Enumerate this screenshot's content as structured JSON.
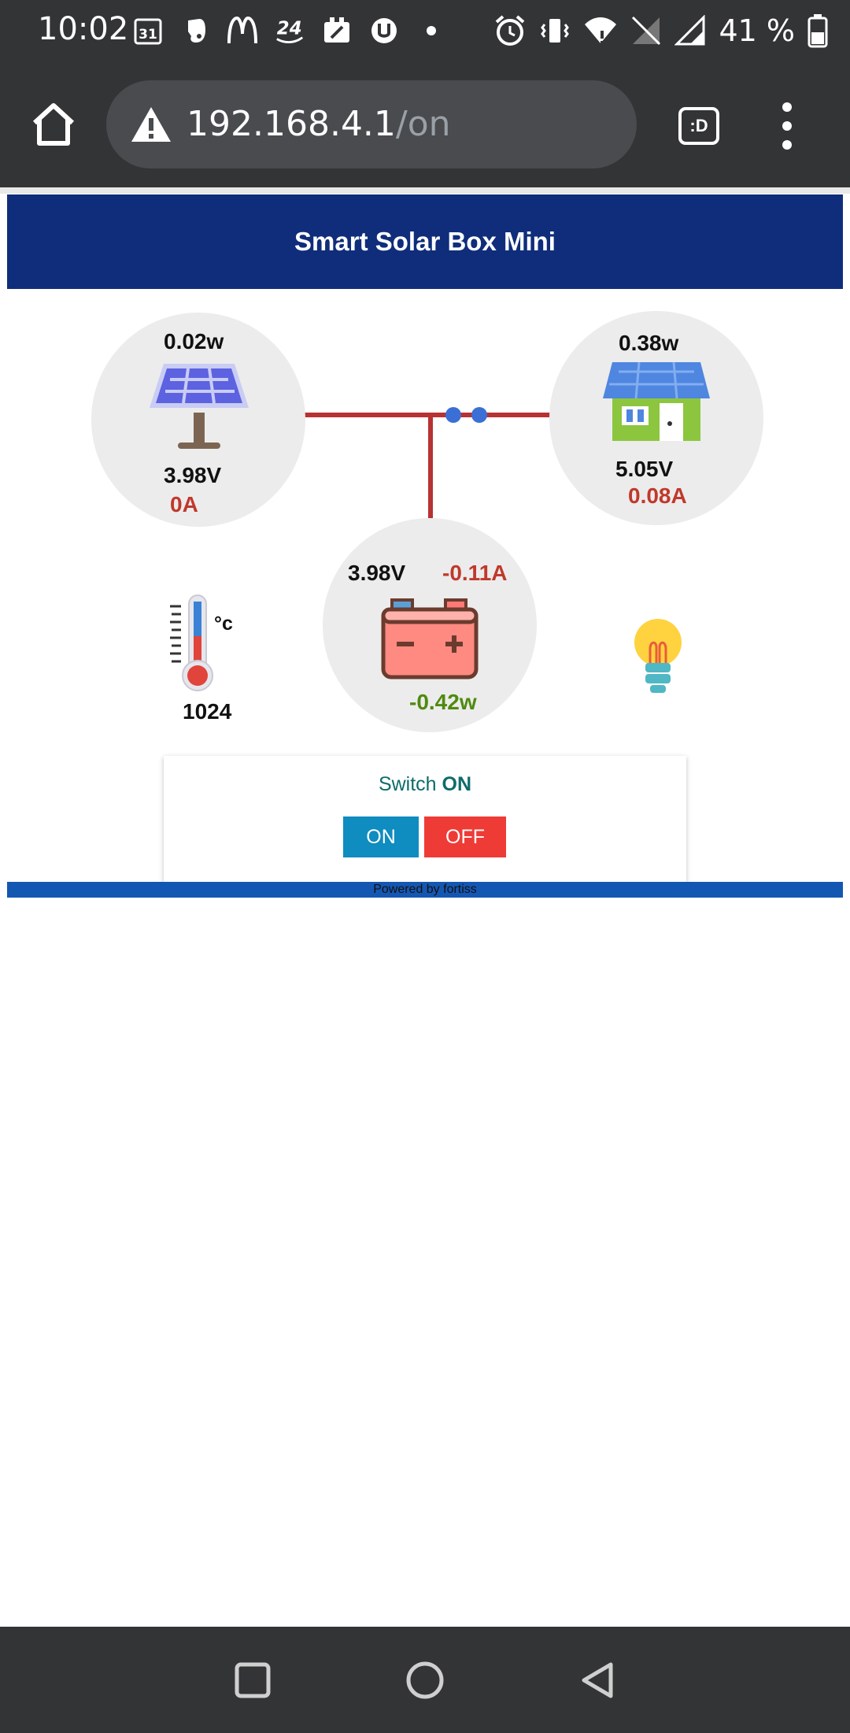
{
  "status_bar": {
    "time": "10:02",
    "calendar_day": "31",
    "battery_percent": "41 %",
    "icons": [
      "calendar-icon",
      "evernote-icon",
      "mcdonalds-icon",
      "app24-icon",
      "delivery-icon",
      "uber-eats-icon",
      "dot-icon",
      "alarm-icon",
      "vibrate-icon",
      "wifi-icon",
      "no-sim-icon",
      "signal-icon",
      "battery-icon"
    ]
  },
  "browser": {
    "url_host": "192.168.4.1",
    "url_path": "/on",
    "tabs_label": ":D"
  },
  "page": {
    "title": "Smart Solar Box Mini",
    "solar": {
      "power": "0.02w",
      "voltage": "3.98V",
      "current": "0A"
    },
    "house": {
      "power": "0.38w",
      "voltage": "5.05V",
      "current": "0.08A"
    },
    "battery": {
      "voltage": "3.98V",
      "current": "-0.11A",
      "power": "-0.42w"
    },
    "temperature": {
      "unit": "°c",
      "value": "1024"
    },
    "switch": {
      "label_prefix": "Switch",
      "state": "ON",
      "on_label": "ON",
      "off_label": "OFF"
    },
    "footer": "Powered by fortiss"
  },
  "colors": {
    "header_bg": "#0f2d7a",
    "wire": "#b73232",
    "negative_value": "#c0392b",
    "battery_power": "#4f8a10",
    "on_button": "#0f8cc0",
    "off_button": "#ef3b36",
    "footer_bar": "#1457b3"
  }
}
